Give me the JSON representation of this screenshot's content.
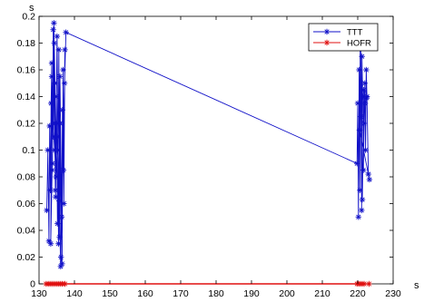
{
  "chart_data": {
    "type": "line",
    "xlabel": "s",
    "ylabel": "s",
    "xlim": [
      130,
      230
    ],
    "ylim": [
      0,
      0.2
    ],
    "xticks": [
      130,
      140,
      150,
      160,
      170,
      180,
      190,
      200,
      210,
      220,
      230
    ],
    "yticks": [
      0,
      0.02,
      0.04,
      0.06,
      0.08,
      0.1,
      0.12,
      0.14,
      0.16,
      0.18,
      0.2
    ],
    "xtick_labels": [
      "130",
      "140",
      "150",
      "160",
      "170",
      "180",
      "190",
      "200",
      "210",
      "220",
      "230"
    ],
    "ytick_labels": [
      "0",
      "0.02",
      "0.04",
      "0.06",
      "0.08",
      "0.1",
      "0.12",
      "0.14",
      "0.16",
      "0.18",
      "0.2"
    ],
    "grid": false,
    "legend_position": "top-right",
    "series": [
      {
        "name": "TTT",
        "color": "#1010c8",
        "marker": "asterisk",
        "x": [
          132.2,
          132.5,
          132.8,
          133.0,
          133.2,
          133.4,
          133.6,
          133.8,
          134.0,
          134.1,
          134.3,
          134.5,
          134.7,
          134.9,
          135.0,
          135.2,
          135.4,
          135.6,
          135.8,
          136.0,
          136.2,
          136.5,
          136.8,
          137.0,
          137.3,
          136.9,
          136.6,
          136.4,
          135.9,
          135.5,
          135.1,
          134.6,
          134.2,
          133.7,
          133.3,
          133.6,
          134.0,
          134.4,
          134.8,
          135.3,
          135.7,
          136.1,
          137.2,
          137.6,
          219.8,
          220.0,
          220.2,
          220.4,
          220.6,
          220.7,
          220.9,
          221.1,
          221.2,
          221.4,
          221.6,
          221.8,
          222.0,
          222.2,
          222.4,
          222.6,
          223.0,
          223.3,
          220.5,
          220.8,
          221.3,
          221.7,
          222.1,
          222.5
        ],
        "y": [
          0.055,
          0.1,
          0.032,
          0.118,
          0.07,
          0.135,
          0.165,
          0.09,
          0.19,
          0.11,
          0.18,
          0.15,
          0.065,
          0.14,
          0.12,
          0.045,
          0.1,
          0.175,
          0.035,
          0.12,
          0.02,
          0.015,
          0.16,
          0.06,
          0.175,
          0.085,
          0.13,
          0.05,
          0.155,
          0.03,
          0.185,
          0.07,
          0.195,
          0.085,
          0.03,
          0.155,
          0.12,
          0.1,
          0.08,
          0.11,
          0.062,
          0.013,
          0.15,
          0.188,
          0.09,
          0.135,
          0.05,
          0.16,
          0.07,
          0.185,
          0.125,
          0.055,
          0.17,
          0.14,
          0.085,
          0.12,
          0.15,
          0.1,
          0.16,
          0.14,
          0.082,
          0.078,
          0.115,
          0.19,
          0.063,
          0.145,
          0.135,
          0.139
        ]
      },
      {
        "name": "HOFR",
        "color": "#e01010",
        "marker": "asterisk",
        "x": [
          132.0,
          132.6,
          133.1,
          133.6,
          134.1,
          134.6,
          135.1,
          135.6,
          136.1,
          136.6,
          137.3,
          219.8,
          220.3,
          220.8,
          221.3,
          221.8,
          223.2
        ],
        "y": [
          0,
          0,
          0,
          0,
          0,
          0,
          0,
          0,
          0,
          0,
          0,
          0,
          0,
          0,
          0,
          0,
          0
        ]
      }
    ]
  }
}
